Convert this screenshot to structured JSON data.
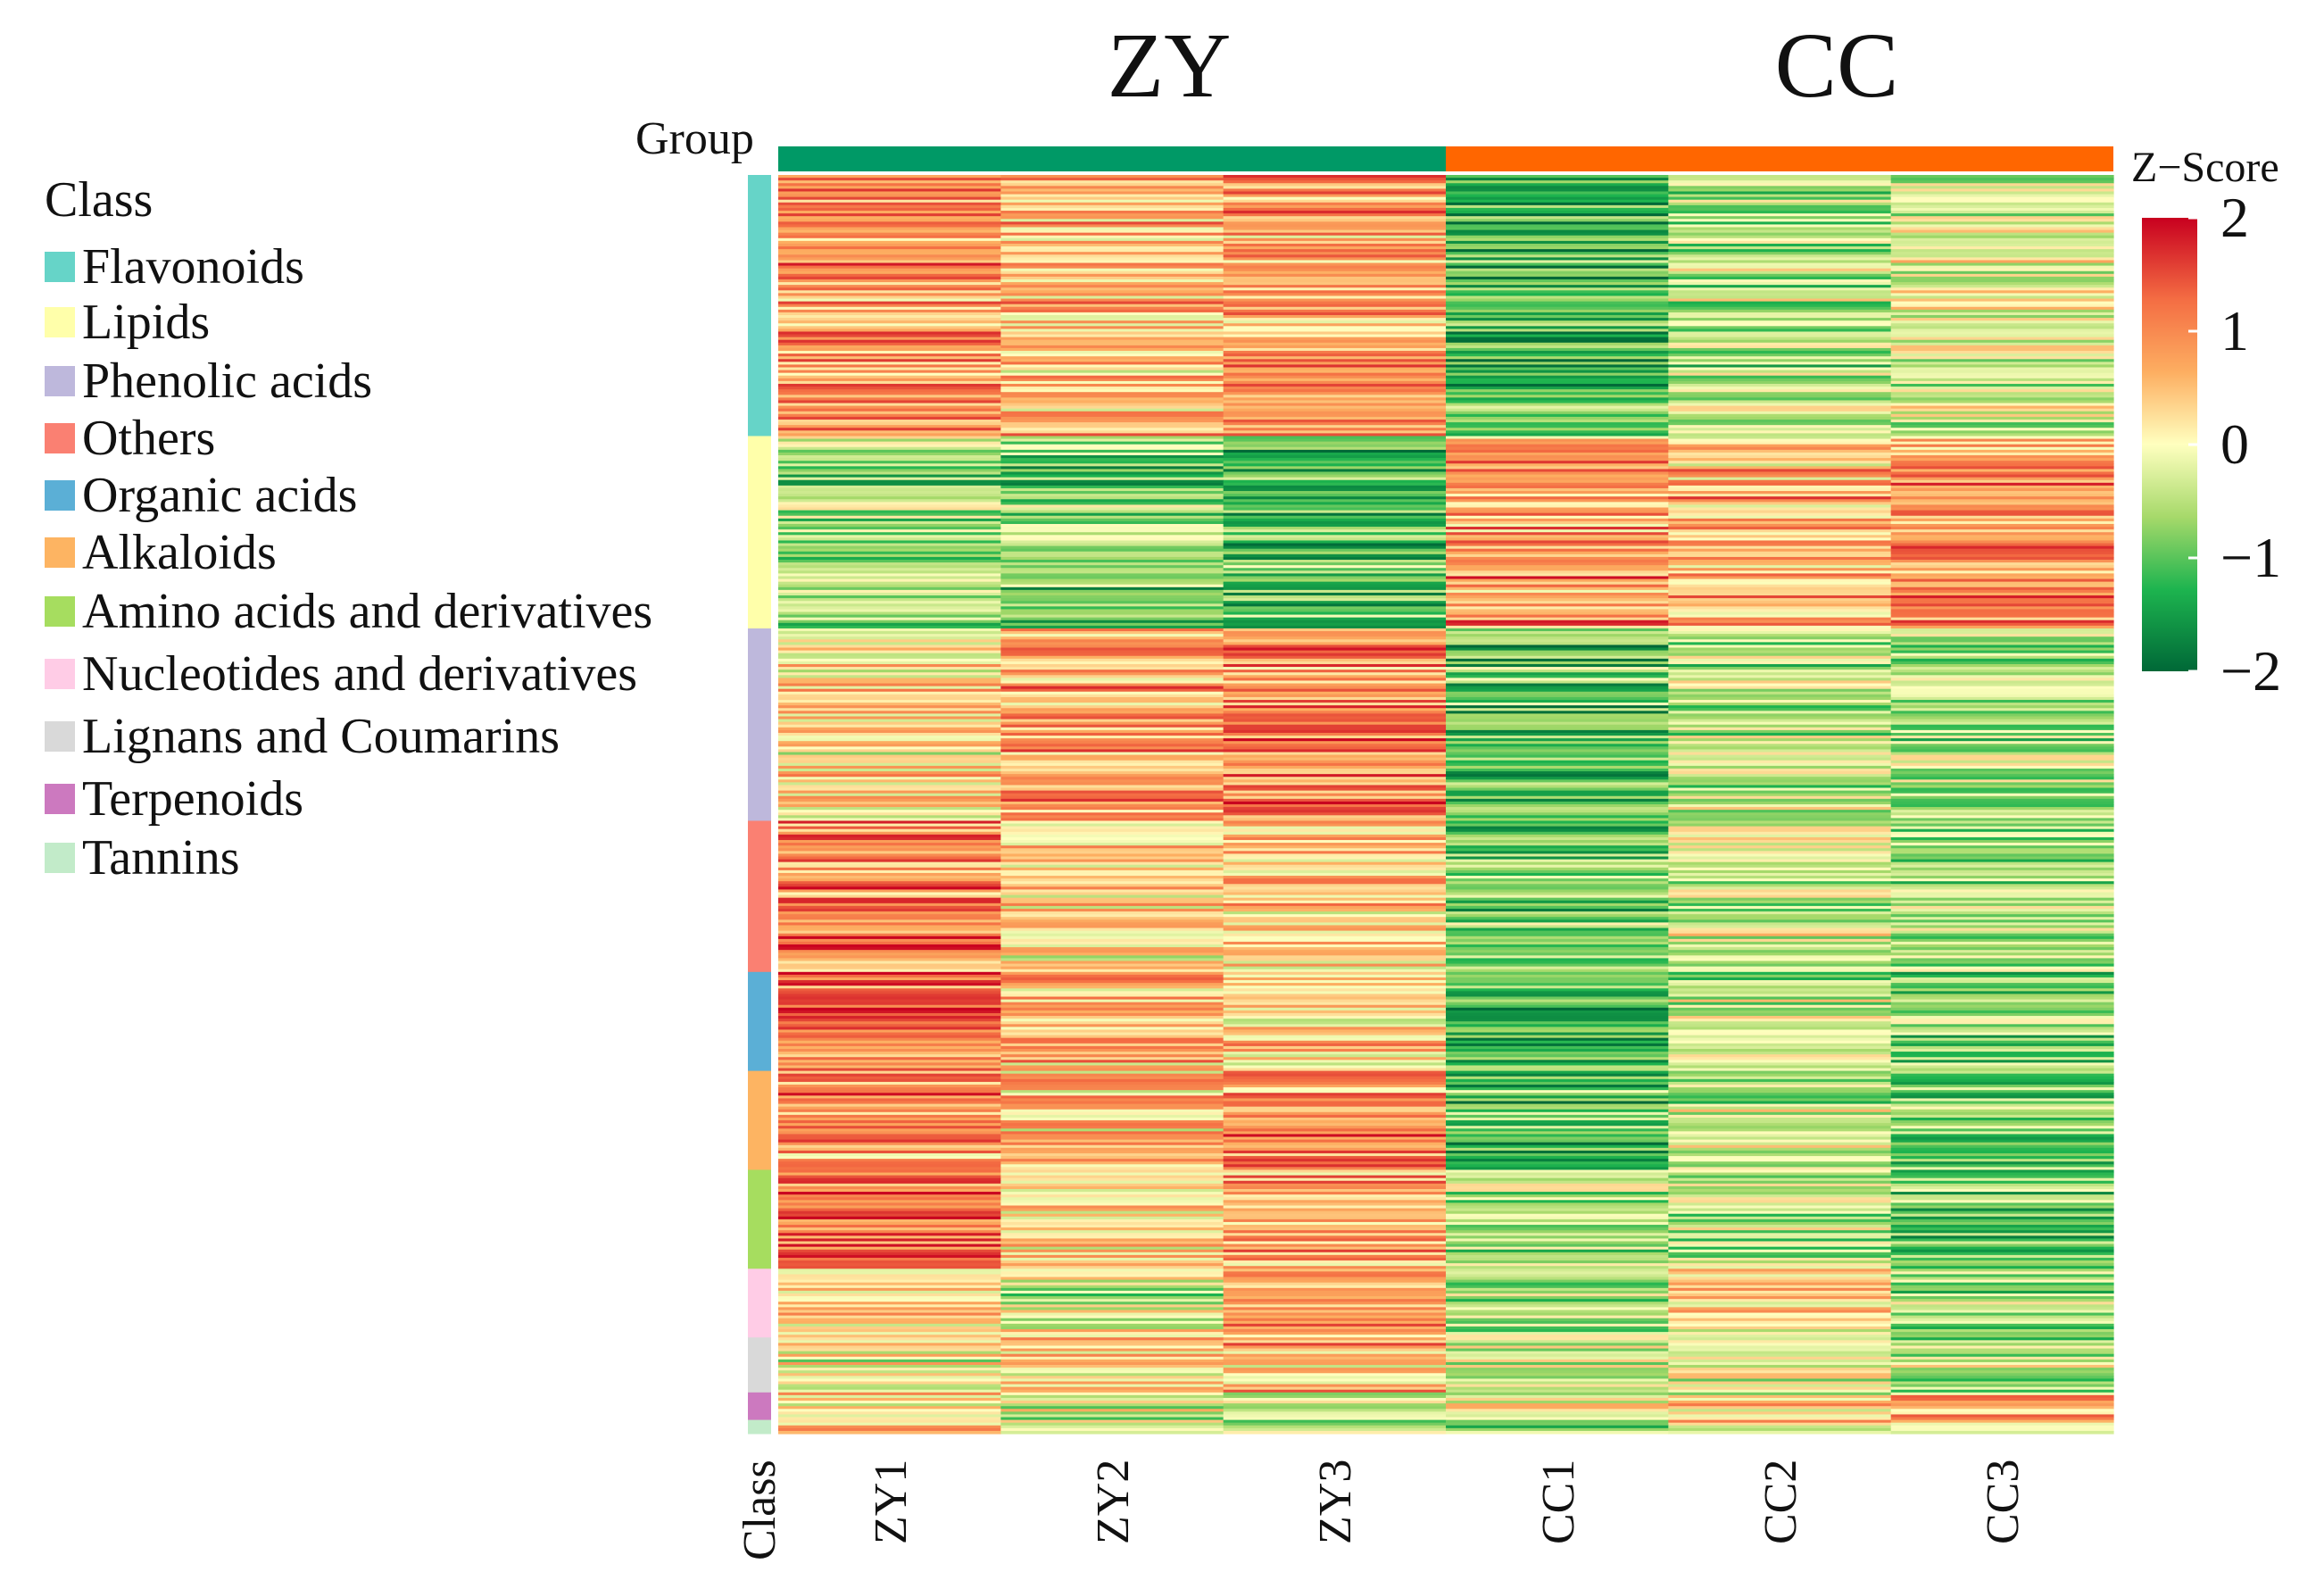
{
  "chart_data": {
    "type": "heatmap",
    "value_range": [
      -2,
      2
    ],
    "groups": [
      {
        "name": "ZY",
        "color": "#009966",
        "samples": [
          "ZY1",
          "ZY2",
          "ZY3"
        ]
      },
      {
        "name": "CC",
        "color": "#FF6600",
        "samples": [
          "CC1",
          "CC2",
          "CC3"
        ]
      }
    ],
    "columns": [
      "ZY1",
      "ZY2",
      "ZY3",
      "CC1",
      "CC2",
      "CC3"
    ],
    "group_bar_label": "Group",
    "class_bar_label": "Class",
    "legend_title": "Class",
    "classes": [
      {
        "name": "Flavonoids",
        "color": "#66D4C8",
        "rows": 95,
        "mean": [
          0.9,
          0.6,
          0.8,
          -1.2,
          -0.6,
          -0.3
        ]
      },
      {
        "name": "Lipids",
        "color": "#FFFFAA",
        "rows": 70,
        "mean": [
          -0.6,
          -0.8,
          -1.0,
          0.9,
          0.6,
          0.9
        ]
      },
      {
        "name": "Phenolic acids",
        "color": "#BEB8DC",
        "rows": 70,
        "mean": [
          0.3,
          0.8,
          1.0,
          -1.0,
          -0.4,
          -0.6
        ]
      },
      {
        "name": "Others",
        "color": "#FA8072",
        "rows": 55,
        "mean": [
          1.0,
          0.3,
          0.4,
          -0.9,
          -0.2,
          -0.6
        ]
      },
      {
        "name": "Organic acids",
        "color": "#5BAFD6",
        "rows": 36,
        "mean": [
          1.1,
          0.5,
          0.3,
          -1.0,
          -0.3,
          -0.7
        ]
      },
      {
        "name": "Alkaloids",
        "color": "#FDB462",
        "rows": 36,
        "mean": [
          0.8,
          0.4,
          0.9,
          -1.0,
          -0.4,
          -0.8
        ]
      },
      {
        "name": "Amino acids and derivatives",
        "color": "#A6DD5F",
        "rows": 36,
        "mean": [
          1.0,
          0.2,
          0.6,
          -0.6,
          -0.5,
          -0.7
        ]
      },
      {
        "name": "Nucleotides and derivatives",
        "color": "#FFCCE6",
        "rows": 25,
        "mean": [
          0.2,
          -0.2,
          0.9,
          -0.4,
          0.3,
          -0.5
        ]
      },
      {
        "name": "Lignans and Coumarins",
        "color": "#D9D9D9",
        "rows": 20,
        "mean": [
          0.0,
          0.3,
          0.5,
          -0.3,
          -0.2,
          -0.4
        ]
      },
      {
        "name": "Terpenoids",
        "color": "#CC79BF",
        "rows": 10,
        "mean": [
          0.3,
          -0.3,
          -0.5,
          -0.2,
          0.1,
          0.8
        ]
      },
      {
        "name": "Tannins",
        "color": "#C2EBC9",
        "rows": 5,
        "mean": [
          0.5,
          0.2,
          -0.4,
          -0.6,
          0.2,
          0.3
        ]
      }
    ],
    "colorbar": {
      "title": "Z−Score",
      "ticks": [
        2,
        1,
        0,
        -1,
        -2
      ],
      "tick_labels": [
        "2",
        "1",
        "0",
        "−1",
        "−2"
      ],
      "colors": [
        "#006837",
        "#1DB44F",
        "#A6D96A",
        "#FFFFBF",
        "#FDAE61",
        "#F46D43",
        "#C8001F"
      ]
    }
  }
}
